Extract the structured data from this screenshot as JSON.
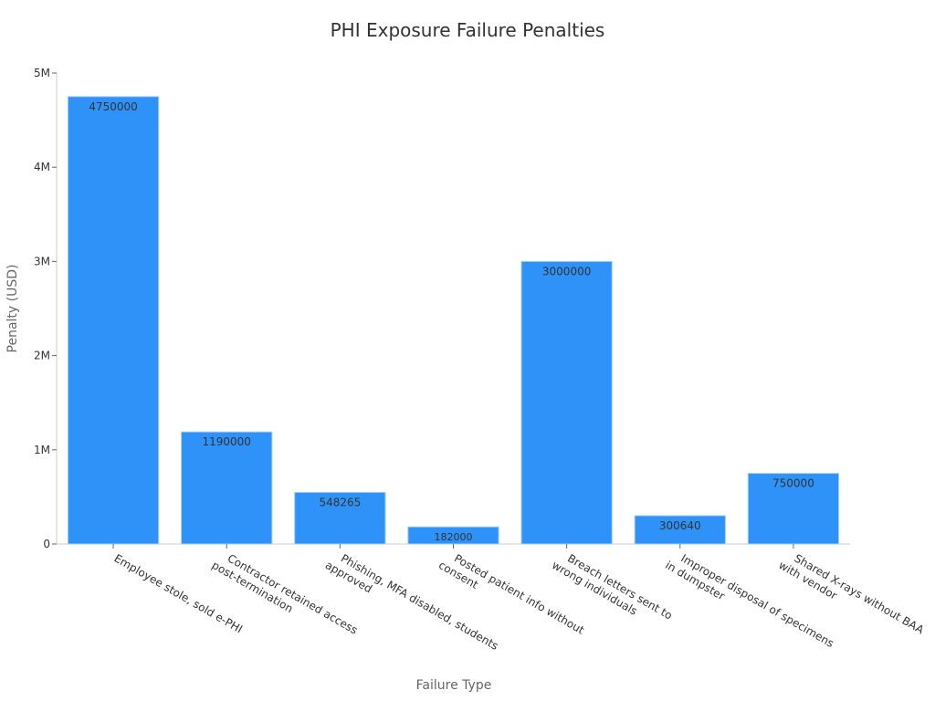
{
  "chart_data": {
    "type": "bar",
    "title": "PHI Exposure Failure Penalties",
    "xlabel": "Failure Type",
    "ylabel": "Penalty (USD)",
    "ylim": [
      0,
      5000000
    ],
    "yticks": [
      {
        "value": 0,
        "label": "0"
      },
      {
        "value": 1000000,
        "label": "1M"
      },
      {
        "value": 2000000,
        "label": "2M"
      },
      {
        "value": 3000000,
        "label": "3M"
      },
      {
        "value": 4000000,
        "label": "4M"
      },
      {
        "value": 5000000,
        "label": "5M"
      }
    ],
    "categories": [
      [
        "Employee stole, sold e-PHI"
      ],
      [
        "Contractor retained access",
        "post-termination"
      ],
      [
        "Phishing, MFA disabled, students",
        "approved"
      ],
      [
        "Posted patient info without",
        "consent"
      ],
      [
        "Breach letters sent to",
        "wrong individuals"
      ],
      [
        "Improper disposal of specimens",
        "in dumpster"
      ],
      [
        "Shared X-rays without BAA",
        "with vendor"
      ]
    ],
    "values": [
      4750000,
      1190000,
      548265,
      182000,
      3000000,
      300640,
      750000
    ],
    "data_labels": [
      "4750000",
      "1190000",
      "548265",
      "182000",
      "3000000",
      "300640",
      "750000"
    ],
    "grid": false,
    "legend": "none",
    "colors": {
      "bar_fill": "#2e92f8",
      "bar_stroke": "#a8d0fb"
    }
  }
}
